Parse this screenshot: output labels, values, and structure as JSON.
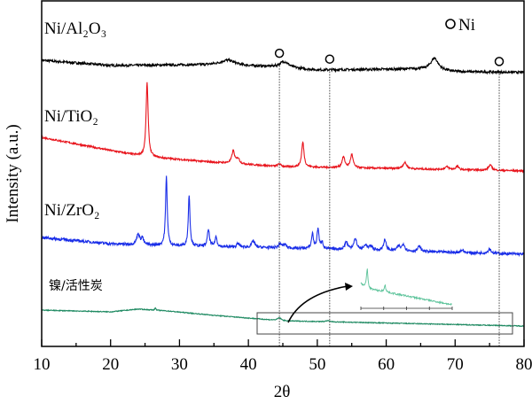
{
  "chart_data": {
    "type": "line",
    "xlabel": "2θ",
    "ylabel": "Intensity (a.u.)",
    "xlim": [
      10,
      80
    ],
    "xticks": [
      10,
      20,
      30,
      40,
      50,
      60,
      70,
      80
    ],
    "ylim": [
      0,
      100
    ],
    "grid": false,
    "legend": {
      "marker": "open-circle",
      "label": "Ni",
      "placement": "top-right"
    },
    "reference_lines": [
      44.5,
      51.8,
      76.4
    ],
    "series": [
      {
        "name": "Ni/Al₂O₃",
        "color": "#000000",
        "noise": 0.35,
        "baseline": [
          [
            10,
            82.8
          ],
          [
            20,
            81.3
          ],
          [
            35,
            81.5
          ],
          [
            42,
            81.0
          ],
          [
            50,
            80.0
          ],
          [
            65,
            80.3
          ],
          [
            70,
            79.5
          ],
          [
            80,
            79.3
          ]
        ],
        "peaks": [
          [
            37,
            1.5,
            1.5
          ],
          [
            45.2,
            1.8,
            1.0
          ],
          [
            67,
            3.5,
            0.8
          ]
        ]
      },
      {
        "name": "Ni/TiO₂",
        "color": "#e8141c",
        "noise": 0.25,
        "baseline": [
          [
            10,
            60.5
          ],
          [
            20,
            56.7
          ],
          [
            25,
            54.9
          ],
          [
            35,
            53.3
          ],
          [
            45,
            52
          ],
          [
            60,
            51.5
          ],
          [
            80,
            50.8
          ]
        ],
        "peaks": [
          [
            25.3,
            21.5,
            0.22
          ],
          [
            37.8,
            3.6,
            0.3
          ],
          [
            38.5,
            1.5,
            0.3
          ],
          [
            44.5,
            0.8,
            0.3
          ],
          [
            47.9,
            7.2,
            0.25
          ],
          [
            53.8,
            3.1,
            0.3
          ],
          [
            55.0,
            3.8,
            0.28
          ],
          [
            62.7,
            1.8,
            0.4
          ],
          [
            68.8,
            0.8,
            0.4
          ],
          [
            70.3,
            1.0,
            0.3
          ],
          [
            75.1,
            1.5,
            0.35
          ]
        ]
      },
      {
        "name": "Ni/ZrO₂",
        "color": "#1a2ee8",
        "noise": 0.4,
        "baseline": [
          [
            10,
            31.5
          ],
          [
            20,
            29.7
          ],
          [
            30,
            29
          ],
          [
            45,
            28.5
          ],
          [
            60,
            27.7
          ],
          [
            80,
            26.7
          ]
        ],
        "peaks": [
          [
            24.0,
            3.1,
            0.3
          ],
          [
            24.6,
            2,
            0.25
          ],
          [
            28.1,
            20,
            0.18
          ],
          [
            31.4,
            14.9,
            0.18
          ],
          [
            34.2,
            4.9,
            0.22
          ],
          [
            35.3,
            2.8,
            0.22
          ],
          [
            38.5,
            1,
            0.3
          ],
          [
            40.7,
            2,
            0.3
          ],
          [
            44.6,
            1.2,
            0.3
          ],
          [
            45.3,
            1,
            0.3
          ],
          [
            49.3,
            4.4,
            0.2
          ],
          [
            50.1,
            5.9,
            0.2
          ],
          [
            50.7,
            2,
            0.2
          ],
          [
            54.2,
            2.2,
            0.3
          ],
          [
            55.5,
            3,
            0.35
          ],
          [
            57,
            1.5,
            0.3
          ],
          [
            57.8,
            1.2,
            0.3
          ],
          [
            59.8,
            3,
            0.3
          ],
          [
            61.8,
            1.3,
            0.3
          ],
          [
            62.5,
            2,
            0.3
          ],
          [
            64.8,
            1.5,
            0.3
          ],
          [
            71,
            0.8,
            0.3
          ],
          [
            75,
            1.3,
            0.3
          ]
        ]
      },
      {
        "name": "镍/活性炭",
        "color": "#1f8a62",
        "noise": 0.12,
        "baseline": [
          [
            10,
            10.5
          ],
          [
            20,
            10
          ],
          [
            24,
            10.8
          ],
          [
            28,
            10.3
          ],
          [
            35,
            9
          ],
          [
            45,
            7.4
          ],
          [
            50,
            7.2
          ],
          [
            80,
            5.9
          ]
        ],
        "peaks": [
          [
            26.5,
            0.8,
            0.1
          ],
          [
            44.5,
            0.8,
            0.4
          ],
          [
            51.5,
            0.3,
            0.4
          ]
        ]
      }
    ]
  }
}
